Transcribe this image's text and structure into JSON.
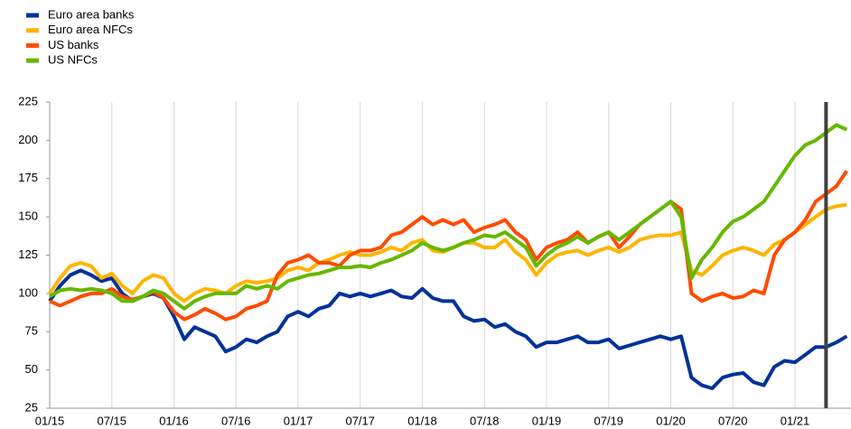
{
  "chart_data": {
    "type": "line",
    "categories": [
      "01/15",
      null,
      null,
      null,
      null,
      null,
      "07/15",
      null,
      null,
      null,
      null,
      null,
      "01/16",
      null,
      null,
      null,
      null,
      null,
      "07/16",
      null,
      null,
      null,
      null,
      null,
      "01/17",
      null,
      null,
      null,
      null,
      null,
      "07/17",
      null,
      null,
      null,
      null,
      null,
      "01/18",
      null,
      null,
      null,
      null,
      null,
      "07/18",
      null,
      null,
      null,
      null,
      null,
      "01/19",
      null,
      null,
      null,
      null,
      null,
      "07/19",
      null,
      null,
      null,
      null,
      null,
      "01/20",
      null,
      null,
      null,
      null,
      null,
      "07/20",
      null,
      null,
      null,
      null,
      null,
      "01/21",
      null,
      null,
      null,
      null,
      null
    ],
    "series": [
      {
        "name": "Euro area banks",
        "color": "#003299",
        "values": [
          95,
          105,
          112,
          115,
          112,
          108,
          110,
          100,
          95,
          98,
          100,
          97,
          85,
          70,
          78,
          75,
          72,
          62,
          65,
          70,
          68,
          72,
          75,
          85,
          88,
          85,
          90,
          92,
          100,
          98,
          100,
          98,
          100,
          102,
          98,
          97,
          103,
          97,
          95,
          95,
          85,
          82,
          83,
          78,
          80,
          75,
          72,
          65,
          68,
          68,
          70,
          72,
          68,
          68,
          70,
          64,
          66,
          68,
          70,
          72,
          70,
          72,
          45,
          40,
          38,
          45,
          47,
          48,
          42,
          40,
          52,
          56,
          55,
          60,
          65,
          65,
          68,
          72
        ]
      },
      {
        "name": "Euro area NFCs",
        "color": "#ffb400",
        "values": [
          100,
          110,
          118,
          120,
          118,
          110,
          113,
          105,
          100,
          108,
          112,
          110,
          100,
          95,
          100,
          103,
          102,
          100,
          105,
          108,
          107,
          108,
          110,
          115,
          117,
          115,
          120,
          122,
          125,
          127,
          125,
          125,
          127,
          130,
          128,
          133,
          135,
          128,
          127,
          130,
          133,
          133,
          130,
          130,
          135,
          127,
          122,
          112,
          120,
          125,
          127,
          128,
          125,
          128,
          130,
          127,
          130,
          135,
          137,
          138,
          138,
          140,
          115,
          112,
          118,
          125,
          128,
          130,
          128,
          125,
          132,
          135,
          140,
          145,
          150,
          155,
          157,
          158
        ]
      },
      {
        "name": "US banks",
        "color": "#ff4b00",
        "values": [
          95,
          92,
          95,
          98,
          100,
          100,
          103,
          98,
          96,
          98,
          101,
          97,
          88,
          83,
          86,
          90,
          87,
          83,
          85,
          90,
          92,
          95,
          112,
          120,
          122,
          125,
          120,
          120,
          118,
          125,
          128,
          128,
          130,
          138,
          140,
          145,
          150,
          145,
          148,
          145,
          148,
          140,
          143,
          145,
          148,
          140,
          135,
          122,
          130,
          133,
          135,
          140,
          133,
          137,
          140,
          130,
          137,
          145,
          150,
          155,
          160,
          155,
          100,
          95,
          98,
          100,
          97,
          98,
          102,
          100,
          125,
          135,
          140,
          148,
          160,
          165,
          170,
          180
        ]
      },
      {
        "name": "US NFCs",
        "color": "#65b800",
        "values": [
          98,
          102,
          103,
          102,
          103,
          102,
          100,
          95,
          95,
          98,
          102,
          100,
          95,
          90,
          95,
          98,
          100,
          100,
          100,
          105,
          103,
          105,
          103,
          108,
          110,
          112,
          113,
          115,
          117,
          117,
          118,
          117,
          120,
          122,
          125,
          128,
          133,
          130,
          128,
          130,
          133,
          135,
          138,
          137,
          140,
          135,
          130,
          118,
          125,
          130,
          133,
          137,
          133,
          137,
          140,
          135,
          140,
          145,
          150,
          155,
          160,
          150,
          110,
          122,
          130,
          140,
          147,
          150,
          155,
          160,
          170,
          180,
          190,
          197,
          200,
          205,
          210,
          207
        ]
      }
    ],
    "ylim": [
      25,
      225
    ],
    "yticks": [
      25,
      50,
      75,
      100,
      125,
      150,
      175,
      200,
      225
    ],
    "grid": true,
    "legend": "top-left",
    "vertical_line": {
      "at": 75,
      "color": "#404040"
    }
  }
}
